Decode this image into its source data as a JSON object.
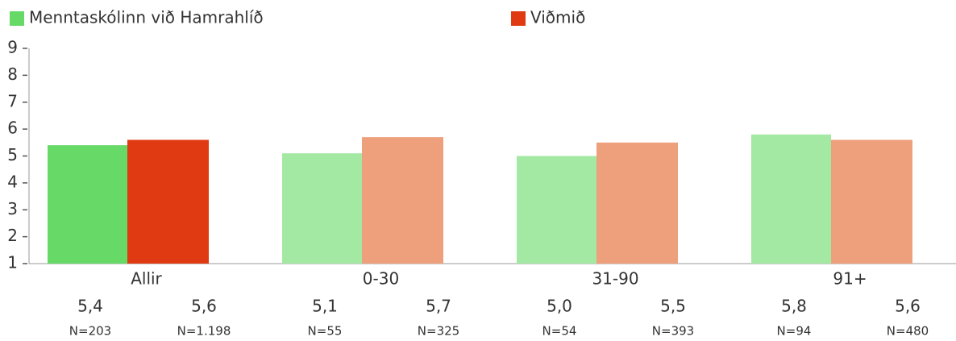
{
  "chart_data": {
    "type": "bar",
    "categories": [
      "Allir",
      "0-30",
      "31-90",
      "91+"
    ],
    "series": [
      {
        "name": "Menntaskólinn við Hamrahlíð",
        "color": "#66d966",
        "colors": [
          "#66d966",
          "#a3e9a3",
          "#a3e9a3",
          "#a3e9a3"
        ],
        "values": [
          5.4,
          5.1,
          5.0,
          5.8
        ],
        "value_labels": [
          "5,4",
          "5,1",
          "5,0",
          "5,8"
        ],
        "n_labels": [
          "N=203",
          "N=55",
          "N=54",
          "N=94"
        ]
      },
      {
        "name": "Viðmið",
        "color": "#e03a12",
        "colors": [
          "#e03a12",
          "#eea07c",
          "#eea07c",
          "#eea07c"
        ],
        "values": [
          5.6,
          5.7,
          5.5,
          5.6
        ],
        "value_labels": [
          "5,6",
          "5,7",
          "5,5",
          "5,6"
        ],
        "n_labels": [
          "N=1.198",
          "N=325",
          "N=393",
          "N=480"
        ]
      }
    ],
    "ylim": [
      1,
      9
    ],
    "yticks": [
      1,
      2,
      3,
      4,
      5,
      6,
      7,
      8,
      9
    ],
    "grid": false
  }
}
